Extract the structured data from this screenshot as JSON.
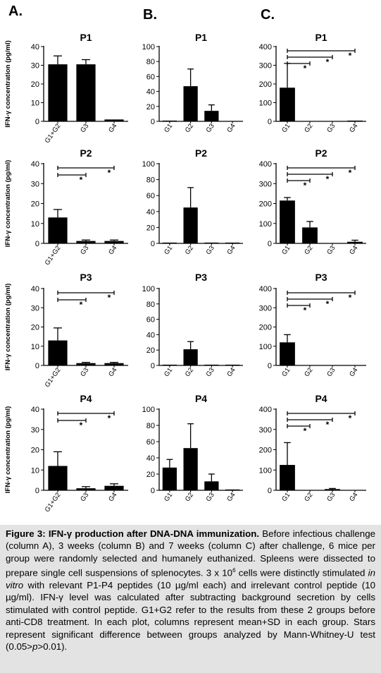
{
  "column_labels": [
    "A.",
    "B.",
    "C."
  ],
  "chart_data": [
    {
      "id": "A1",
      "col": 0,
      "row": 0,
      "type": "bar",
      "title": "P1",
      "ylabel": "IFN-γ concentration (pg/ml)",
      "categories": [
        "G1+G2",
        "G3",
        "G4"
      ],
      "values": [
        30.5,
        30.5,
        1
      ],
      "errors": [
        4.5,
        2.5,
        0
      ],
      "ylim": [
        0,
        40
      ],
      "yticks": [
        0,
        10,
        20,
        30,
        40
      ],
      "sig": []
    },
    {
      "id": "B1",
      "col": 1,
      "row": 0,
      "type": "bar",
      "title": "P1",
      "ylabel": "",
      "categories": [
        "G1",
        "G2",
        "G3",
        "G4"
      ],
      "values": [
        1,
        47,
        14,
        0.5
      ],
      "errors": [
        0,
        23,
        8,
        0
      ],
      "ylim": [
        0,
        100
      ],
      "yticks": [
        0,
        20,
        40,
        60,
        80,
        100
      ],
      "sig": []
    },
    {
      "id": "C1",
      "col": 2,
      "row": 0,
      "type": "bar",
      "title": "P1",
      "ylabel": "",
      "categories": [
        "G1",
        "G2",
        "G3",
        "G4"
      ],
      "values": [
        180,
        1,
        1,
        4
      ],
      "errors": [
        130,
        0,
        0,
        0
      ],
      "ylim": [
        0,
        400
      ],
      "yticks": [
        0,
        100,
        200,
        300,
        400
      ],
      "sig": [
        {
          "to": 1,
          "label": "*"
        },
        {
          "to": 2,
          "label": "*"
        },
        {
          "to": 3,
          "label": "*"
        }
      ]
    },
    {
      "id": "A2",
      "col": 0,
      "row": 1,
      "type": "bar",
      "title": "P2",
      "ylabel": "IFN-γ concentration (pg/ml)",
      "categories": [
        "G1+G2",
        "G3",
        "G4"
      ],
      "values": [
        13,
        1.2,
        1.2
      ],
      "errors": [
        4,
        0.5,
        0.5
      ],
      "ylim": [
        0,
        40
      ],
      "yticks": [
        0,
        10,
        20,
        30,
        40
      ],
      "sig": [
        {
          "to": 1,
          "label": "*"
        },
        {
          "to": 2,
          "label": "*"
        }
      ]
    },
    {
      "id": "B2",
      "col": 1,
      "row": 1,
      "type": "bar",
      "title": "P2",
      "ylabel": "",
      "categories": [
        "G1",
        "G2",
        "G3",
        "G4"
      ],
      "values": [
        1,
        45,
        1,
        1
      ],
      "errors": [
        0,
        25,
        0,
        0
      ],
      "ylim": [
        0,
        100
      ],
      "yticks": [
        0,
        20,
        40,
        60,
        80,
        100
      ],
      "sig": []
    },
    {
      "id": "C2",
      "col": 2,
      "row": 1,
      "type": "bar",
      "title": "P2",
      "ylabel": "",
      "categories": [
        "G1",
        "G2",
        "G3",
        "G4"
      ],
      "values": [
        215,
        80,
        1,
        8
      ],
      "errors": [
        15,
        30,
        0,
        8
      ],
      "ylim": [
        0,
        400
      ],
      "yticks": [
        0,
        100,
        200,
        300,
        400
      ],
      "sig": [
        {
          "to": 1,
          "label": "*"
        },
        {
          "to": 2,
          "label": "*"
        },
        {
          "to": 3,
          "label": "*"
        }
      ]
    },
    {
      "id": "A3",
      "col": 0,
      "row": 2,
      "type": "bar",
      "title": "P3",
      "ylabel": "IFN-γ concentration (pg/ml)",
      "categories": [
        "G1+G2",
        "G3",
        "G4"
      ],
      "values": [
        13,
        1.2,
        1.2
      ],
      "errors": [
        6.5,
        0.4,
        0.4
      ],
      "ylim": [
        0,
        40
      ],
      "yticks": [
        0,
        10,
        20,
        30,
        40
      ],
      "sig": [
        {
          "to": 1,
          "label": "*"
        },
        {
          "to": 2,
          "label": "*"
        }
      ]
    },
    {
      "id": "B3",
      "col": 1,
      "row": 2,
      "type": "bar",
      "title": "P3",
      "ylabel": "",
      "categories": [
        "G1",
        "G2",
        "G3",
        "G4"
      ],
      "values": [
        1,
        21,
        1,
        1
      ],
      "errors": [
        0,
        10,
        0,
        0
      ],
      "ylim": [
        0,
        100
      ],
      "yticks": [
        0,
        20,
        40,
        60,
        80,
        100
      ],
      "sig": []
    },
    {
      "id": "C3",
      "col": 2,
      "row": 2,
      "type": "bar",
      "title": "P3",
      "ylabel": "",
      "categories": [
        "G1",
        "G2",
        "G3",
        "G4"
      ],
      "values": [
        120,
        1,
        1,
        1
      ],
      "errors": [
        40,
        0,
        0,
        0
      ],
      "ylim": [
        0,
        400
      ],
      "yticks": [
        0,
        100,
        200,
        300,
        400
      ],
      "sig": [
        {
          "to": 1,
          "label": "*"
        },
        {
          "to": 2,
          "label": "*"
        },
        {
          "to": 3,
          "label": "*"
        }
      ]
    },
    {
      "id": "A4",
      "col": 0,
      "row": 3,
      "type": "bar",
      "title": "P4",
      "ylabel": "IFN-γ concentration (pg/ml)",
      "categories": [
        "G1+G2",
        "G3",
        "G4"
      ],
      "values": [
        12,
        1,
        2.2
      ],
      "errors": [
        7,
        0.8,
        1
      ],
      "ylim": [
        0,
        40
      ],
      "yticks": [
        0,
        10,
        20,
        30,
        40
      ],
      "sig": [
        {
          "to": 1,
          "label": "*"
        },
        {
          "to": 2,
          "label": "*"
        }
      ]
    },
    {
      "id": "B4",
      "col": 1,
      "row": 3,
      "type": "bar",
      "title": "P4",
      "ylabel": "",
      "categories": [
        "G1",
        "G2",
        "G3",
        "G4"
      ],
      "values": [
        28,
        52,
        11,
        1
      ],
      "errors": [
        10,
        30,
        9,
        0
      ],
      "ylim": [
        0,
        100
      ],
      "yticks": [
        0,
        20,
        40,
        60,
        80,
        100
      ],
      "sig": []
    },
    {
      "id": "C4",
      "col": 2,
      "row": 3,
      "type": "bar",
      "title": "P4",
      "ylabel": "",
      "categories": [
        "G1",
        "G2",
        "G3",
        "G4"
      ],
      "values": [
        125,
        1,
        6,
        1
      ],
      "errors": [
        110,
        0,
        3,
        0
      ],
      "ylim": [
        0,
        400
      ],
      "yticks": [
        0,
        100,
        200,
        300,
        400
      ],
      "sig": [
        {
          "to": 1,
          "label": "*"
        },
        {
          "to": 2,
          "label": "*"
        },
        {
          "to": 3,
          "label": "*"
        }
      ]
    }
  ],
  "caption": {
    "label": "Figure 3: IFN-γ production after DNA-DNA immunization.",
    "part1": " Before infectious challenge (column A), 3 weeks (column B) and 7 weeks (column C) after challenge, 6 mice per group were randomly selected and humanely euthanized. Spleens were dissected to prepare single cell suspensions of splenocytes. 3 x 10",
    "sup": "6",
    "part2": " cells were distinctly stimulated ",
    "italic1": "in vitro",
    "part3": " with relevant P1-P4 peptides (10 µg/ml each) and irrelevant control peptide (10 µg/ml). IFN-γ level was calculated after subtracting background secretion by cells stimulated with control peptide. G1+G2 refer to the results from these 2 groups before anti-CD8 treatment. In each plot, columns represent mean+SD in each group. Stars represent significant difference between groups analyzed by Mann-Whitney-U test (0.05>",
    "italic2": "p",
    "part4": ">0.01)."
  }
}
